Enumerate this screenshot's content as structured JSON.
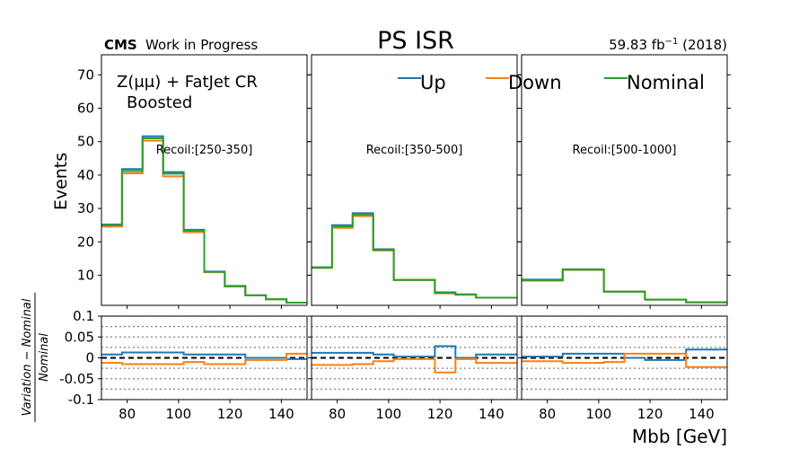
{
  "header": {
    "cms": "CMS",
    "wip": "Work in Progress",
    "title": "PS ISR",
    "title_color": "#ff0000",
    "lumi": "59.83 fb",
    "lumi_exp": "−1",
    "lumi_tail": " (2018)"
  },
  "annotations": {
    "region_line1": "Z(μμ) + FatJet CR",
    "region_line2": "Boosted",
    "recoil_color": "#0000ff"
  },
  "legend": [
    {
      "label": "Up",
      "color": "#1f77b4"
    },
    {
      "label": "Down",
      "color": "#ff7f0e"
    },
    {
      "label": "Nominal",
      "color": "#2ca02c"
    }
  ],
  "axes": {
    "ylabel_top": "Events",
    "ylabel_ratio_num": "Variation − Nominal",
    "ylabel_ratio_den": "Nominal",
    "xlabel": "Mbb [GeV]",
    "x_ticks": [
      "80",
      "100",
      "120",
      "140"
    ],
    "x_tick_values": [
      80,
      100,
      120,
      140
    ],
    "y_ticks_top": [
      "10",
      "20",
      "30",
      "40",
      "50",
      "60",
      "70"
    ],
    "y_tick_values_top": [
      10,
      20,
      30,
      40,
      50,
      60,
      70
    ],
    "y_ticks_ratio": [
      "0.1",
      "0.05",
      "0",
      "-0.05",
      "-0.1"
    ],
    "y_tick_values_ratio": [
      0.1,
      0.05,
      0,
      -0.05,
      -0.1
    ]
  },
  "chart_data": {
    "type": "histogram",
    "xlim": [
      70,
      150
    ],
    "ylim": [
      1,
      76
    ],
    "ratio_ylim": [
      -0.1,
      0.1
    ],
    "ratio_gridlines": [
      -0.1,
      -0.075,
      -0.05,
      -0.025,
      0.025,
      0.05,
      0.075,
      0.1
    ],
    "bin_edges": [
      70,
      78,
      86,
      94,
      102,
      110,
      118,
      126,
      134,
      142,
      150
    ],
    "panels": [
      {
        "recoil_label": "Recoil:[250-350]",
        "series": [
          {
            "name": "Up",
            "color": "#1f77b4",
            "values": [
              25.2,
              41.8,
              51.6,
              40.9,
              23.6,
              11.1,
              6.8,
              4.0,
              2.8,
              1.8
            ]
          },
          {
            "name": "Down",
            "color": "#ff7f0e",
            "values": [
              24.6,
              40.5,
              50.3,
              39.6,
              22.9,
              10.9,
              6.6,
              4.0,
              2.8,
              1.8
            ]
          },
          {
            "name": "Nominal",
            "color": "#2ca02c",
            "values": [
              25.0,
              41.2,
              51.0,
              40.4,
              23.3,
              11.0,
              6.7,
              4.0,
              2.8,
              1.8
            ]
          }
        ],
        "ratio": [
          {
            "name": "Up",
            "color": "#1f77b4",
            "values": [
              0.008,
              0.013,
              0.013,
              0.013,
              0.008,
              0.008,
              0.008,
              0.0,
              0.0,
              -0.003
            ]
          },
          {
            "name": "Down",
            "color": "#ff7f0e",
            "values": [
              -0.012,
              -0.015,
              -0.015,
              -0.015,
              -0.01,
              -0.015,
              -0.015,
              -0.005,
              -0.005,
              0.01
            ]
          }
        ]
      },
      {
        "recoil_label": "Recoil:[350-500]",
        "series": [
          {
            "name": "Up",
            "color": "#1f77b4",
            "values": [
              12.4,
              25.0,
              28.6,
              17.8,
              8.6,
              8.6,
              4.9,
              4.3,
              3.3,
              3.3
            ]
          },
          {
            "name": "Down",
            "color": "#ff7f0e",
            "values": [
              12.2,
              24.2,
              27.7,
              17.4,
              8.6,
              8.6,
              4.6,
              4.2,
              3.3,
              3.3
            ]
          },
          {
            "name": "Nominal",
            "color": "#2ca02c",
            "values": [
              12.3,
              24.6,
              28.1,
              17.6,
              8.6,
              8.6,
              4.7,
              4.2,
              3.3,
              3.3
            ]
          }
        ],
        "ratio": [
          {
            "name": "Up",
            "color": "#1f77b4",
            "values": [
              0.012,
              0.012,
              0.012,
              0.008,
              0.003,
              0.003,
              0.028,
              0.0,
              0.008,
              0.008
            ]
          },
          {
            "name": "Down",
            "color": "#ff7f0e",
            "values": [
              -0.017,
              -0.017,
              -0.015,
              -0.008,
              -0.003,
              -0.003,
              -0.035,
              -0.003,
              -0.012,
              -0.012
            ]
          }
        ]
      },
      {
        "recoil_label": "Recoil:[500-1000]",
        "series": [
          {
            "name": "Up",
            "color": "#1f77b4",
            "values": [
              8.7,
              8.7,
              11.8,
              11.8,
              5.1,
              5.1,
              2.7,
              2.7,
              1.9,
              1.9
            ]
          },
          {
            "name": "Down",
            "color": "#ff7f0e",
            "values": [
              8.4,
              8.4,
              11.6,
              11.6,
              5.1,
              5.1,
              2.7,
              2.7,
              1.9,
              1.9
            ]
          },
          {
            "name": "Nominal",
            "color": "#2ca02c",
            "values": [
              8.5,
              8.5,
              11.7,
              11.7,
              5.1,
              5.1,
              2.7,
              2.7,
              1.9,
              1.9
            ]
          }
        ],
        "ratio": [
          {
            "name": "Up",
            "color": "#1f77b4",
            "values": [
              0.003,
              0.003,
              0.01,
              0.01,
              0.01,
              0.0,
              -0.005,
              -0.005,
              0.02,
              0.02
            ]
          },
          {
            "name": "Down",
            "color": "#ff7f0e",
            "values": [
              -0.008,
              -0.008,
              -0.012,
              -0.012,
              -0.01,
              0.01,
              0.01,
              0.01,
              -0.022,
              -0.022
            ]
          }
        ]
      }
    ]
  }
}
